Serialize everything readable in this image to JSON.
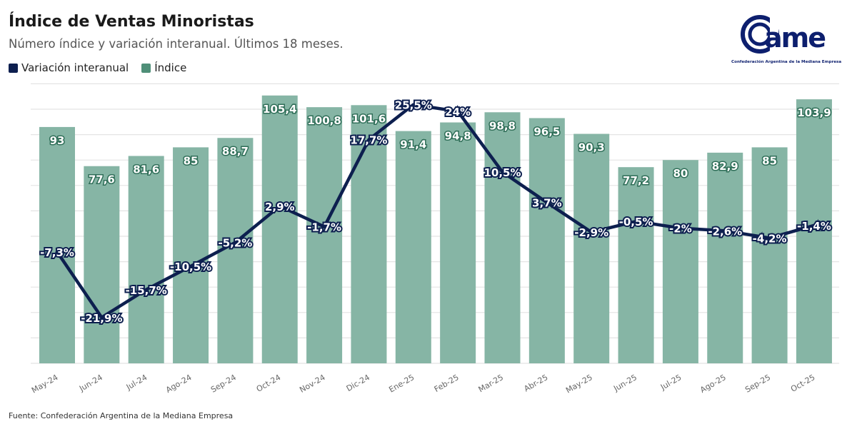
{
  "chart_data": {
    "type": "bar+line",
    "title": "Índice de Ventas Minoristas",
    "subtitle": "Número índice y variación interanual. Últimos 18 meses.",
    "categories": [
      "May-24",
      "Jun-24",
      "Jul-24",
      "Ago-24",
      "Sep-24",
      "Oct-24",
      "Nov-24",
      "Dic-24",
      "Ene-25",
      "Feb-25",
      "Mar-25",
      "Abr-25",
      "May-25",
      "Jun-25",
      "Jul-25",
      "Ago-25",
      "Sep-25",
      "Oct-25"
    ],
    "series": [
      {
        "name": "Variación interanual",
        "type": "line",
        "color": "#0d1f4f",
        "values": [
          -7.3,
          -21.9,
          -15.7,
          -10.5,
          -5.2,
          2.9,
          -1.7,
          17.7,
          25.5,
          24,
          10.5,
          3.7,
          -2.9,
          -0.5,
          -2,
          -2.6,
          -4.2,
          -1.4
        ],
        "labels": [
          "-7,3%",
          "-21,9%",
          "-15,7%",
          "-10,5%",
          "-5,2%",
          "2,9%",
          "-1,7%",
          "17,7%",
          "25,5%",
          "24%",
          "10,5%",
          "3,7%",
          "-2,9%",
          "-0,5%",
          "-2%",
          "-2,6%",
          "-4,2%",
          "-1,4%"
        ]
      },
      {
        "name": "Índice",
        "type": "bar",
        "color": "#86b5a5",
        "values": [
          93,
          77.6,
          81.6,
          85,
          88.7,
          105.4,
          100.8,
          101.6,
          91.4,
          94.8,
          98.8,
          96.5,
          90.3,
          77.2,
          80,
          82.9,
          85,
          103.9
        ],
        "labels": [
          "93",
          "77,6",
          "81,6",
          "85",
          "88,7",
          "105,4",
          "100,8",
          "101,6",
          "91,4",
          "94,8",
          "98,8",
          "96,5",
          "90,3",
          "77,2",
          "80",
          "82,9",
          "85",
          "103,9"
        ]
      }
    ],
    "bar_ylim": [
      0,
      110
    ],
    "grid": true,
    "legend_placement": "top-left",
    "source": "Fuente: Confederación Argentina de la Mediana Empresa"
  },
  "logo": {
    "text": "came",
    "tagline": "Confederación Argentina de la Mediana Empresa",
    "color": "#0d1f6e"
  }
}
